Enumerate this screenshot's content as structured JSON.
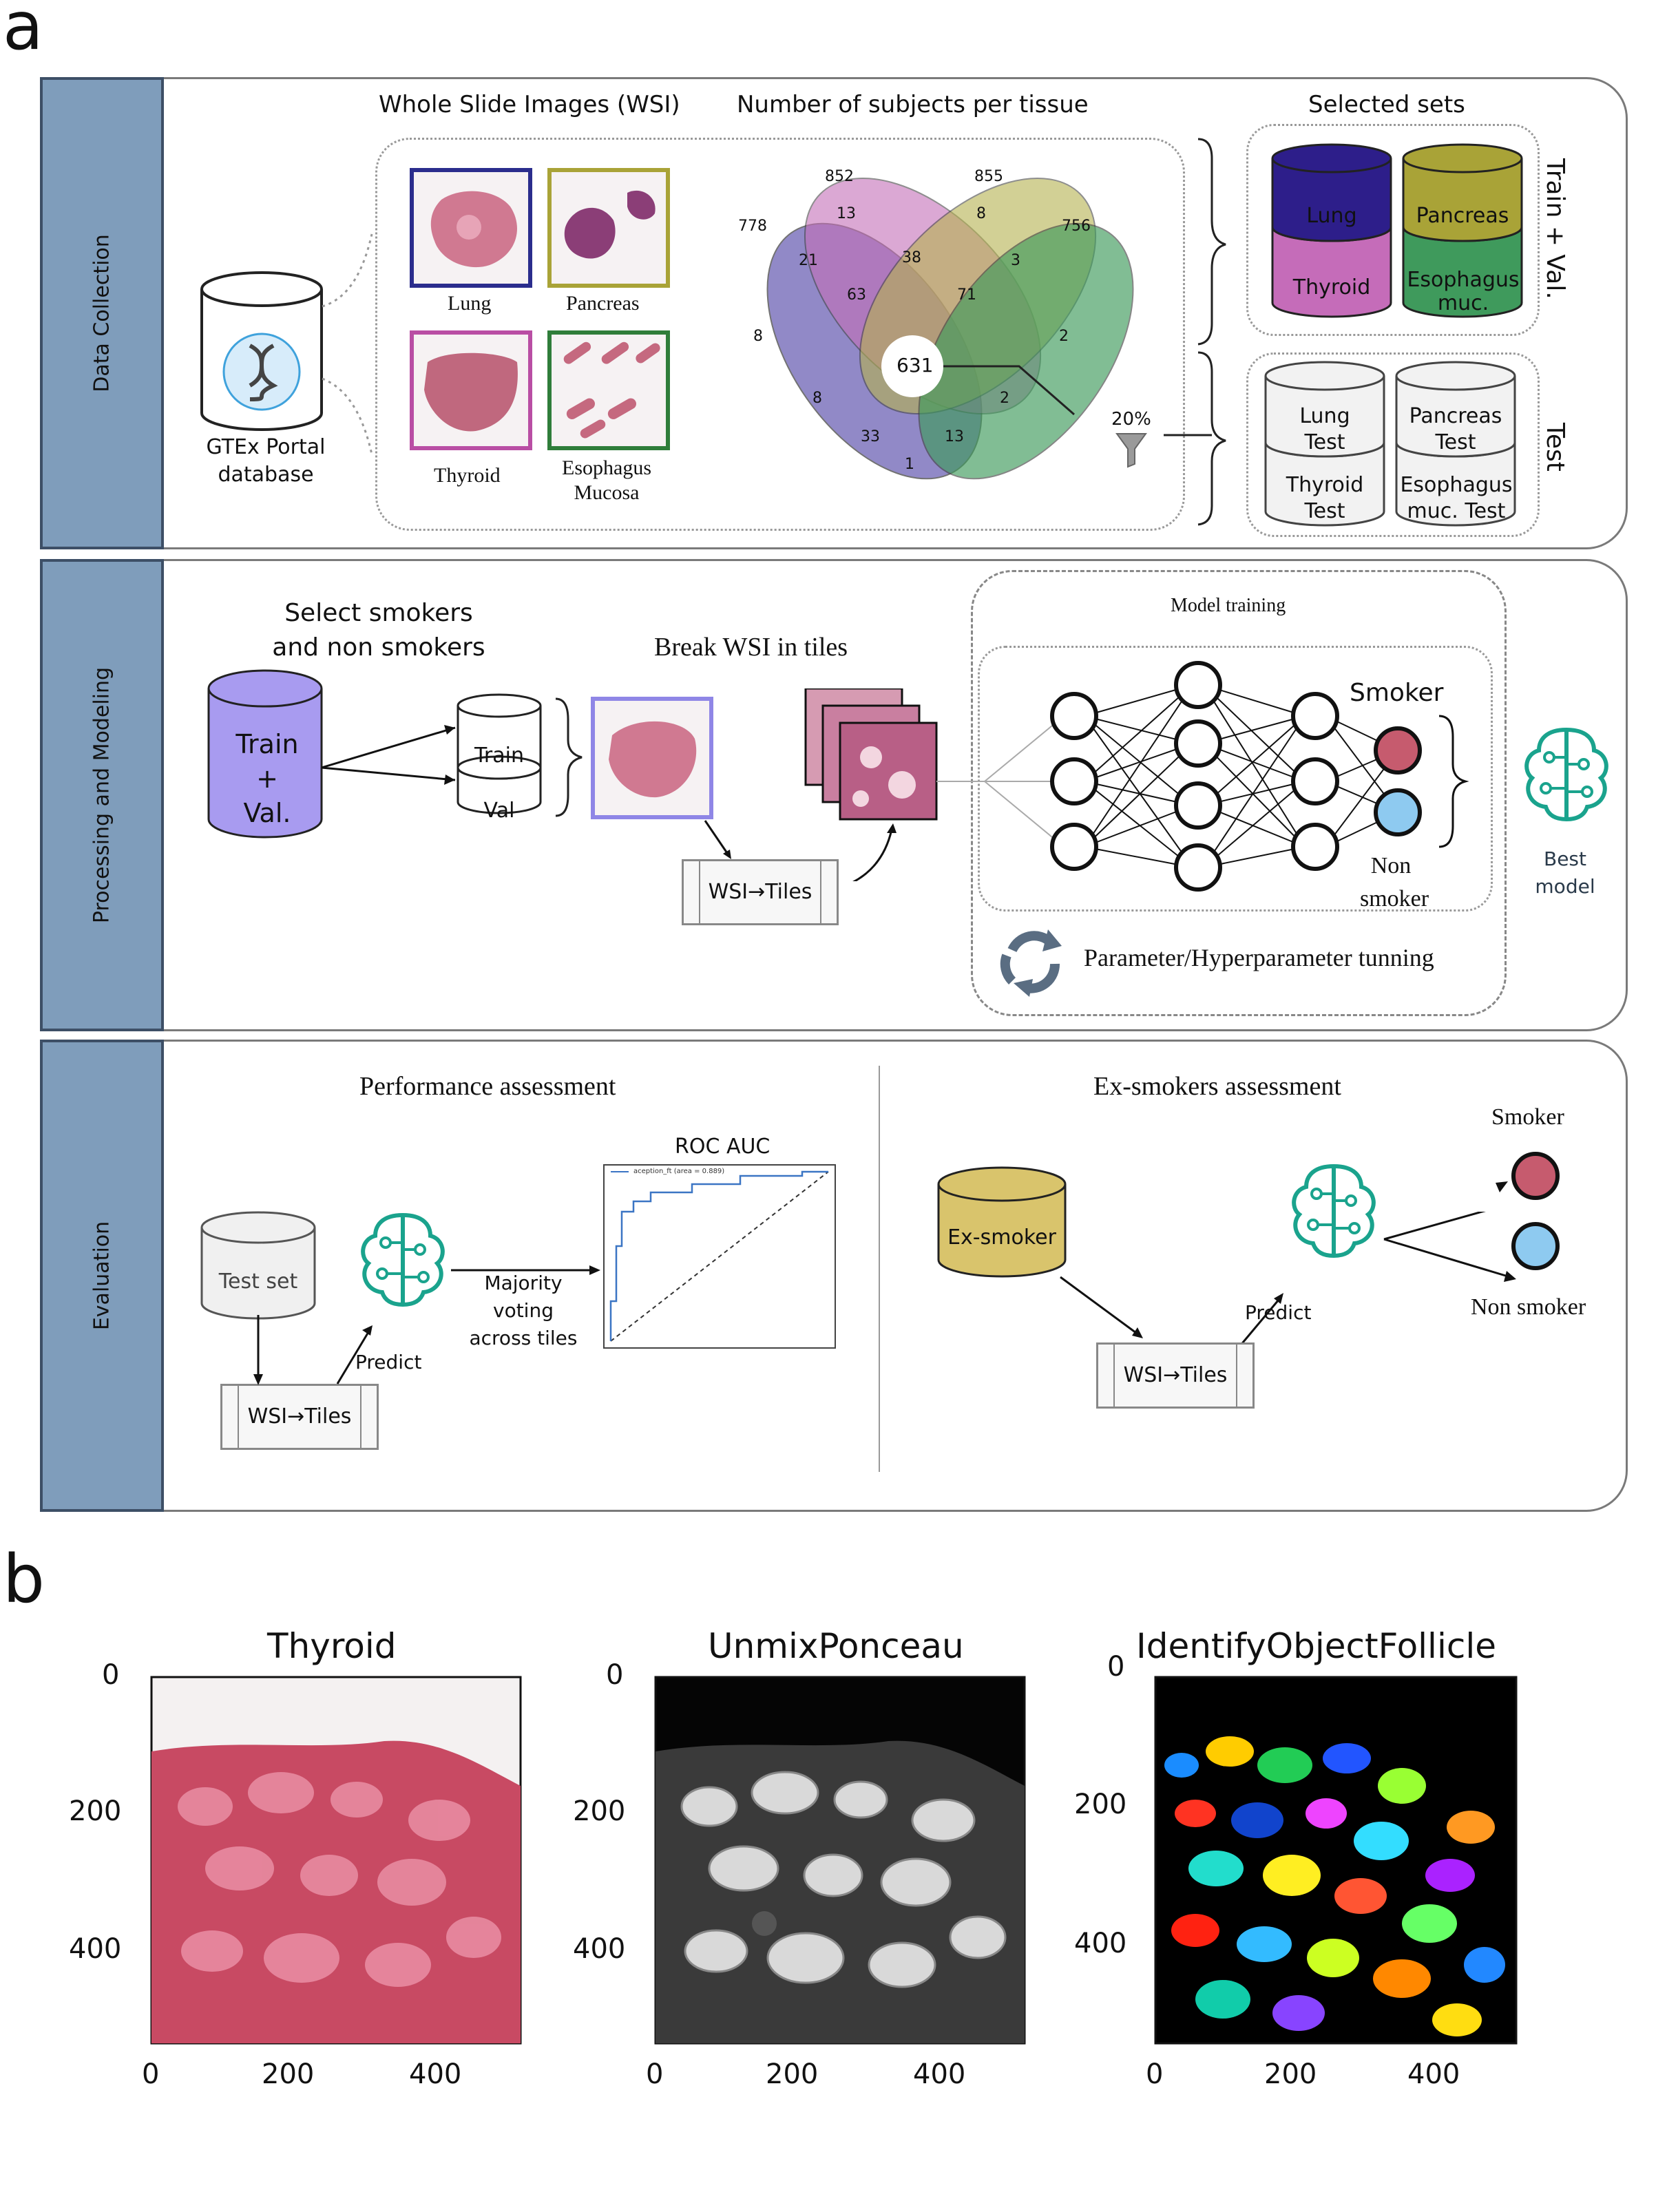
{
  "panel_labels": {
    "a": "a",
    "b": "b"
  },
  "sections": {
    "data_collection": "Data Collection",
    "processing": "Processing and Modeling",
    "evaluation": "Evaluation"
  },
  "data_collection": {
    "gtex_label_1": "GTEx Portal",
    "gtex_label_2": "database",
    "wsi_title": "Whole Slide Images (WSI)",
    "tissues": {
      "lung": "Lung",
      "pancreas": "Pancreas",
      "thyroid": "Thyroid",
      "esoph_1": "Esophagus",
      "esoph_2": "Mucosa"
    },
    "venn_title": "Number of subjects per tissue",
    "venn_totals": [
      "778",
      "852",
      "855",
      "756"
    ],
    "venn_values": [
      "13",
      "8",
      "21",
      "38",
      "3",
      "63",
      "71",
      "8",
      "2",
      "631",
      "8",
      "2",
      "33",
      "13",
      "1"
    ],
    "filter_pct": "20%",
    "selected_title": "Selected sets",
    "train_val_label": "Train + Val.",
    "test_label": "Test",
    "train_sets": {
      "lung": "Lung",
      "pancreas": "Pancreas",
      "thyroid": "Thyroid",
      "esoph_1": "Esophagus",
      "esoph_2": "muc."
    },
    "test_sets": {
      "lung_1": "Lung",
      "lung_2": "Test",
      "pancreas_1": "Pancreas",
      "pancreas_2": "Test",
      "thyroid_1": "Thyroid",
      "thyroid_2": "Test",
      "esoph_1": "Esophagus",
      "esoph_2": "muc. Test"
    }
  },
  "processing": {
    "select_1": "Select smokers",
    "select_2": "and non smokers",
    "train_val_1": "Train",
    "train_val_2": "+",
    "train_val_3": "Val.",
    "split_train": "Train",
    "split_val": "Val",
    "break_title": "Break WSI in tiles",
    "wsi_tiles": "WSI→Tiles",
    "model_training": "Model training",
    "smoker": "Smoker",
    "non_smoker_1": "Non",
    "non_smoker_2": "smoker",
    "best_model_1": "Best",
    "best_model_2": "model",
    "param_tuning": "Parameter/Hyperparameter tunning"
  },
  "evaluation": {
    "perf_title": "Performance assessment",
    "test_set": "Test set",
    "wsi_tiles": "WSI→Tiles",
    "predict": "Predict",
    "majority_1": "Majority",
    "majority_2": "voting",
    "majority_3": "across tiles",
    "roc_title": "ROC AUC",
    "roc_legend": "aception_ft (area = 0.889)",
    "ex_title": "Ex-smokers assessment",
    "ex_smoker": "Ex-smoker",
    "ex_wsi_tiles": "WSI→Tiles",
    "ex_predict": "Predict",
    "smoker": "Smoker",
    "non_smoker": "Non smoker"
  },
  "panel_b": {
    "titles": [
      "Thyroid",
      "UnmixPonceau",
      "IdentifyObjectFollicle"
    ],
    "y_ticks": [
      "0",
      "200",
      "400"
    ],
    "x_ticks": [
      "0",
      "200",
      "400"
    ]
  },
  "colors": {
    "sidebar": "#7f9dbb",
    "venn_purple": "#6d62b5",
    "venn_pink": "#c46fb8",
    "venn_olive": "#b5b24f",
    "venn_green": "#3f9a5c",
    "smoker": "#c65b6e",
    "non_smoker": "#8ecaf0",
    "brain_teal": "#1aa38d",
    "ex_smoker": "#d9c46c"
  }
}
